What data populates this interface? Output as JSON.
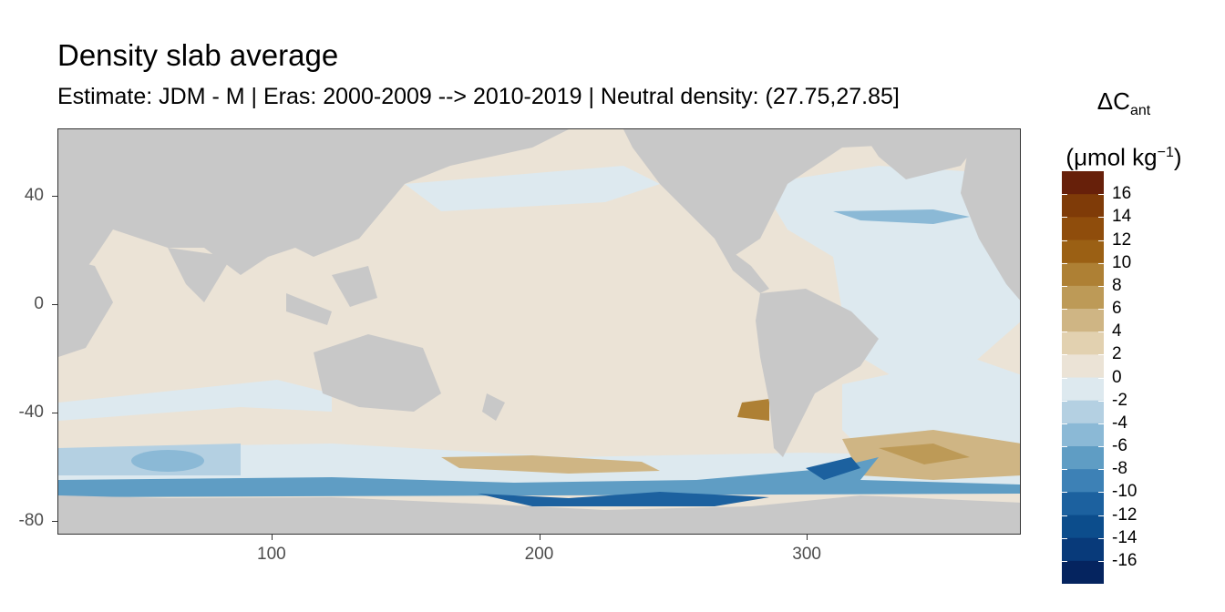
{
  "title": "Density slab average",
  "subtitle": "Estimate: JDM - M | Eras: 2000-2009 --> 2010-2019 | Neutral density: (27.75,27.85]",
  "legend": {
    "title_main": "ΔC",
    "title_sub": "ant",
    "unit_prefix": "(μmol kg",
    "unit_sup": "−1",
    "unit_suffix": ")",
    "breaks": [
      "16",
      "14",
      "12",
      "10",
      "8",
      "6",
      "4",
      "2",
      "0",
      "-2",
      "-4",
      "-6",
      "-8",
      "-10",
      "-12",
      "-14",
      "-16"
    ],
    "colors": [
      "#67200a",
      "#7f3b08",
      "#8f4d0c",
      "#9b6014",
      "#ae8034",
      "#bd9a57",
      "#cfb584",
      "#e2d1b0",
      "#ebe3d6",
      "#dde9ef",
      "#b4d0e2",
      "#8bb9d6",
      "#5f9dc4",
      "#3d81b6",
      "#1c619f",
      "#0c4d8c",
      "#083a7a",
      "#05245f"
    ]
  },
  "axes": {
    "x_ticks": [
      "100",
      "200",
      "300"
    ],
    "y_ticks": [
      "40",
      "0",
      "-40",
      "-80"
    ],
    "xlim": [
      20,
      380
    ],
    "ylim": [
      -85,
      65
    ]
  },
  "colors": {
    "land": "#c8c8c8",
    "no_data": "#ffffff",
    "panel_border": "#333333"
  }
}
